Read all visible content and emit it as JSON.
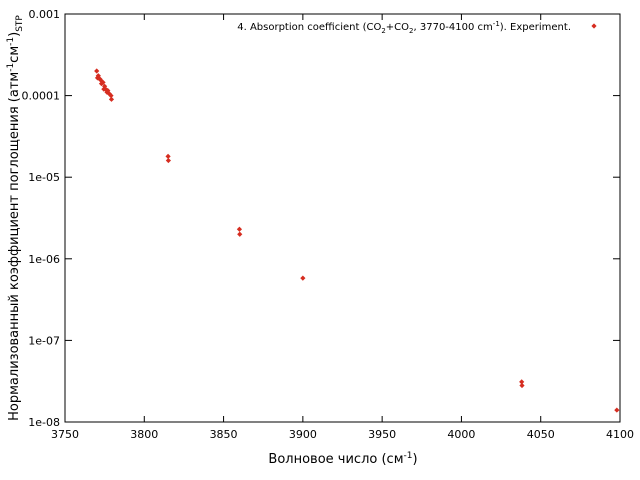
{
  "chart_data": {
    "type": "scatter",
    "xlabel": "Волновое число (см",
    "xlabel_sup": "-1",
    "xlabel_end": ")",
    "ylabel_main": "Нормализованный коэффициент поглощения (атм",
    "ylabel_sup1": "-1",
    "ylabel_mid": "см",
    "ylabel_sup2": "-1",
    "ylabel_end": ")",
    "ylabel_sub": "STP",
    "xlim": [
      3750,
      4100
    ],
    "ylim": [
      1e-08,
      0.001
    ],
    "yscale": "log",
    "x_ticks": [
      "3750",
      "3800",
      "3850",
      "3900",
      "3950",
      "4000",
      "4050",
      "4100"
    ],
    "y_ticks": [
      "0.001",
      "0.0001",
      "1e-05",
      "1e-06",
      "1e-07",
      "1e-08"
    ],
    "grid": false,
    "legend_position": "top-right",
    "marker_color": "#d62d20",
    "series": [
      {
        "legend": {
          "prefix": "4. Absorption coefficient (CO",
          "sub1": "2",
          "mid1": "+CO",
          "sub2": "2",
          "mid2": ", 3770-4100 cm",
          "sup": "-1",
          "end": "). Experiment."
        },
        "x": [
          3770,
          3770.5,
          3771,
          3772,
          3772.5,
          3773,
          3774,
          3774.5,
          3775,
          3776,
          3776.5,
          3777,
          3778,
          3779,
          3779.3,
          3815,
          3815.2,
          3860,
          3860.2,
          3900,
          4038,
          4038.2,
          4098
        ],
        "y": [
          0.0002,
          0.000165,
          0.000175,
          0.00016,
          0.000155,
          0.00014,
          0.000145,
          0.00012,
          0.00013,
          0.000118,
          0.00011,
          0.000115,
          0.000105,
          0.0001,
          9e-05,
          1.8e-05,
          1.6e-05,
          2.3e-06,
          2e-06,
          5.8e-07,
          3.1e-08,
          2.8e-08,
          1.4e-08
        ]
      }
    ]
  }
}
